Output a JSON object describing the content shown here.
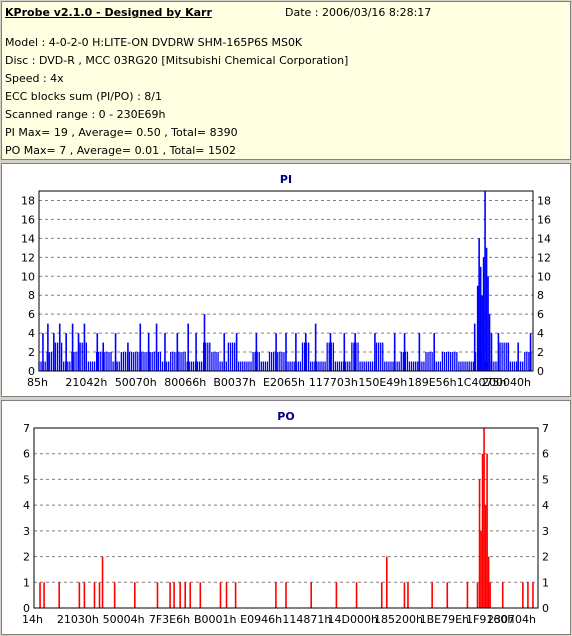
{
  "info": {
    "title": "KProbe v2.1.0 - Designed by Karr",
    "date": "Date : 2006/03/16 8:28:17",
    "lines": [
      "Model : 4-0-2-0 H:LITE-ON DVDRW SHM-165P6S MS0K",
      "Disc : DVD-R , MCC 03RG20   [Mitsubishi Chemical Corporation]",
      "Speed : 4x",
      "ECC blocks sum (PI/PO) : 8/1",
      "Scanned range : 0 - 230E69h",
      "PI Max= 19 , Average= 0.50 , Total= 8390",
      "PO Max= 7 , Average= 0.01 , Total= 1502"
    ]
  },
  "colors": {
    "pi": "#0000ff",
    "po": "#ff0000",
    "grid": "#808080",
    "title": "#000080"
  },
  "chart_data": [
    {
      "type": "bar",
      "title": "PI",
      "ylim": [
        0,
        19
      ],
      "yticks": [
        0,
        2,
        4,
        6,
        8,
        10,
        12,
        14,
        16,
        18
      ],
      "x_tick_labels": [
        "85h",
        "21042h",
        "50070h",
        "80066h",
        "B0037h",
        "E2065h",
        "117703h",
        "150E49h",
        "189E56h",
        "1C4075h",
        "200040h"
      ],
      "x_range": [
        0,
        1
      ],
      "grid": true,
      "baseline": [
        1,
        2,
        2,
        1,
        2,
        3,
        1,
        2,
        1,
        2,
        2,
        1,
        3,
        2,
        1,
        2,
        2,
        1,
        2,
        1,
        2,
        3,
        1,
        2,
        2,
        1,
        1,
        2,
        2,
        1,
        2,
        1,
        2,
        2,
        1,
        2,
        1,
        1,
        2,
        2,
        1,
        2,
        2,
        1,
        1,
        2,
        1,
        1,
        2,
        2,
        1,
        2,
        1,
        1,
        2,
        1,
        2,
        2,
        1,
        1
      ],
      "spikes": [
        {
          "x": 0.008,
          "y": 4
        },
        {
          "x": 0.018,
          "y": 5
        },
        {
          "x": 0.03,
          "y": 4
        },
        {
          "x": 0.042,
          "y": 5
        },
        {
          "x": 0.055,
          "y": 4
        },
        {
          "x": 0.068,
          "y": 5
        },
        {
          "x": 0.08,
          "y": 4
        },
        {
          "x": 0.092,
          "y": 5
        },
        {
          "x": 0.118,
          "y": 4
        },
        {
          "x": 0.13,
          "y": 3
        },
        {
          "x": 0.155,
          "y": 4
        },
        {
          "x": 0.18,
          "y": 3
        },
        {
          "x": 0.205,
          "y": 5
        },
        {
          "x": 0.222,
          "y": 4
        },
        {
          "x": 0.238,
          "y": 5
        },
        {
          "x": 0.255,
          "y": 4
        },
        {
          "x": 0.28,
          "y": 4
        },
        {
          "x": 0.302,
          "y": 5
        },
        {
          "x": 0.318,
          "y": 4
        },
        {
          "x": 0.335,
          "y": 6
        },
        {
          "x": 0.375,
          "y": 4
        },
        {
          "x": 0.4,
          "y": 4
        },
        {
          "x": 0.44,
          "y": 4
        },
        {
          "x": 0.48,
          "y": 4
        },
        {
          "x": 0.5,
          "y": 4
        },
        {
          "x": 0.52,
          "y": 4
        },
        {
          "x": 0.54,
          "y": 4
        },
        {
          "x": 0.56,
          "y": 5
        },
        {
          "x": 0.59,
          "y": 4
        },
        {
          "x": 0.618,
          "y": 4
        },
        {
          "x": 0.64,
          "y": 4
        },
        {
          "x": 0.68,
          "y": 4
        },
        {
          "x": 0.72,
          "y": 4
        },
        {
          "x": 0.74,
          "y": 4
        },
        {
          "x": 0.77,
          "y": 4
        },
        {
          "x": 0.8,
          "y": 4
        },
        {
          "x": 0.882,
          "y": 5
        },
        {
          "x": 0.888,
          "y": 9
        },
        {
          "x": 0.891,
          "y": 14
        },
        {
          "x": 0.894,
          "y": 11
        },
        {
          "x": 0.897,
          "y": 8
        },
        {
          "x": 0.9,
          "y": 12
        },
        {
          "x": 0.903,
          "y": 19
        },
        {
          "x": 0.906,
          "y": 13
        },
        {
          "x": 0.909,
          "y": 10
        },
        {
          "x": 0.912,
          "y": 6
        },
        {
          "x": 0.916,
          "y": 4
        },
        {
          "x": 0.93,
          "y": 4
        },
        {
          "x": 0.95,
          "y": 3
        },
        {
          "x": 0.97,
          "y": 3
        },
        {
          "x": 0.995,
          "y": 4
        }
      ]
    },
    {
      "type": "bar",
      "title": "PO",
      "ylim": [
        0,
        7
      ],
      "yticks": [
        0,
        1,
        2,
        3,
        4,
        5,
        6,
        7
      ],
      "x_tick_labels": [
        "14h",
        "21030h",
        "50004h",
        "7F3E6h",
        "B0001h",
        "E0946h",
        "114871h",
        "14D000h",
        "185200h",
        "1BE79Eh",
        "1F9160h",
        "230704h"
      ],
      "x_range": [
        0,
        1
      ],
      "grid": true,
      "spikes": [
        {
          "x": 0.012,
          "y": 1
        },
        {
          "x": 0.02,
          "y": 1
        },
        {
          "x": 0.05,
          "y": 1
        },
        {
          "x": 0.09,
          "y": 1
        },
        {
          "x": 0.1,
          "y": 1
        },
        {
          "x": 0.12,
          "y": 1
        },
        {
          "x": 0.13,
          "y": 1
        },
        {
          "x": 0.136,
          "y": 2
        },
        {
          "x": 0.16,
          "y": 1
        },
        {
          "x": 0.2,
          "y": 1
        },
        {
          "x": 0.245,
          "y": 1
        },
        {
          "x": 0.27,
          "y": 1
        },
        {
          "x": 0.278,
          "y": 1
        },
        {
          "x": 0.29,
          "y": 1
        },
        {
          "x": 0.3,
          "y": 1
        },
        {
          "x": 0.31,
          "y": 1
        },
        {
          "x": 0.33,
          "y": 1
        },
        {
          "x": 0.37,
          "y": 1
        },
        {
          "x": 0.382,
          "y": 1
        },
        {
          "x": 0.4,
          "y": 1
        },
        {
          "x": 0.48,
          "y": 1
        },
        {
          "x": 0.5,
          "y": 1
        },
        {
          "x": 0.55,
          "y": 1
        },
        {
          "x": 0.6,
          "y": 1
        },
        {
          "x": 0.64,
          "y": 1
        },
        {
          "x": 0.69,
          "y": 1
        },
        {
          "x": 0.7,
          "y": 2
        },
        {
          "x": 0.735,
          "y": 1
        },
        {
          "x": 0.742,
          "y": 1
        },
        {
          "x": 0.79,
          "y": 1
        },
        {
          "x": 0.82,
          "y": 1
        },
        {
          "x": 0.86,
          "y": 1
        },
        {
          "x": 0.88,
          "y": 1
        },
        {
          "x": 0.884,
          "y": 5
        },
        {
          "x": 0.887,
          "y": 3
        },
        {
          "x": 0.89,
          "y": 6
        },
        {
          "x": 0.893,
          "y": 7
        },
        {
          "x": 0.896,
          "y": 4
        },
        {
          "x": 0.899,
          "y": 6
        },
        {
          "x": 0.902,
          "y": 2
        },
        {
          "x": 0.905,
          "y": 1
        },
        {
          "x": 0.93,
          "y": 1
        },
        {
          "x": 0.97,
          "y": 1
        },
        {
          "x": 0.98,
          "y": 1
        },
        {
          "x": 0.99,
          "y": 1
        }
      ]
    }
  ]
}
